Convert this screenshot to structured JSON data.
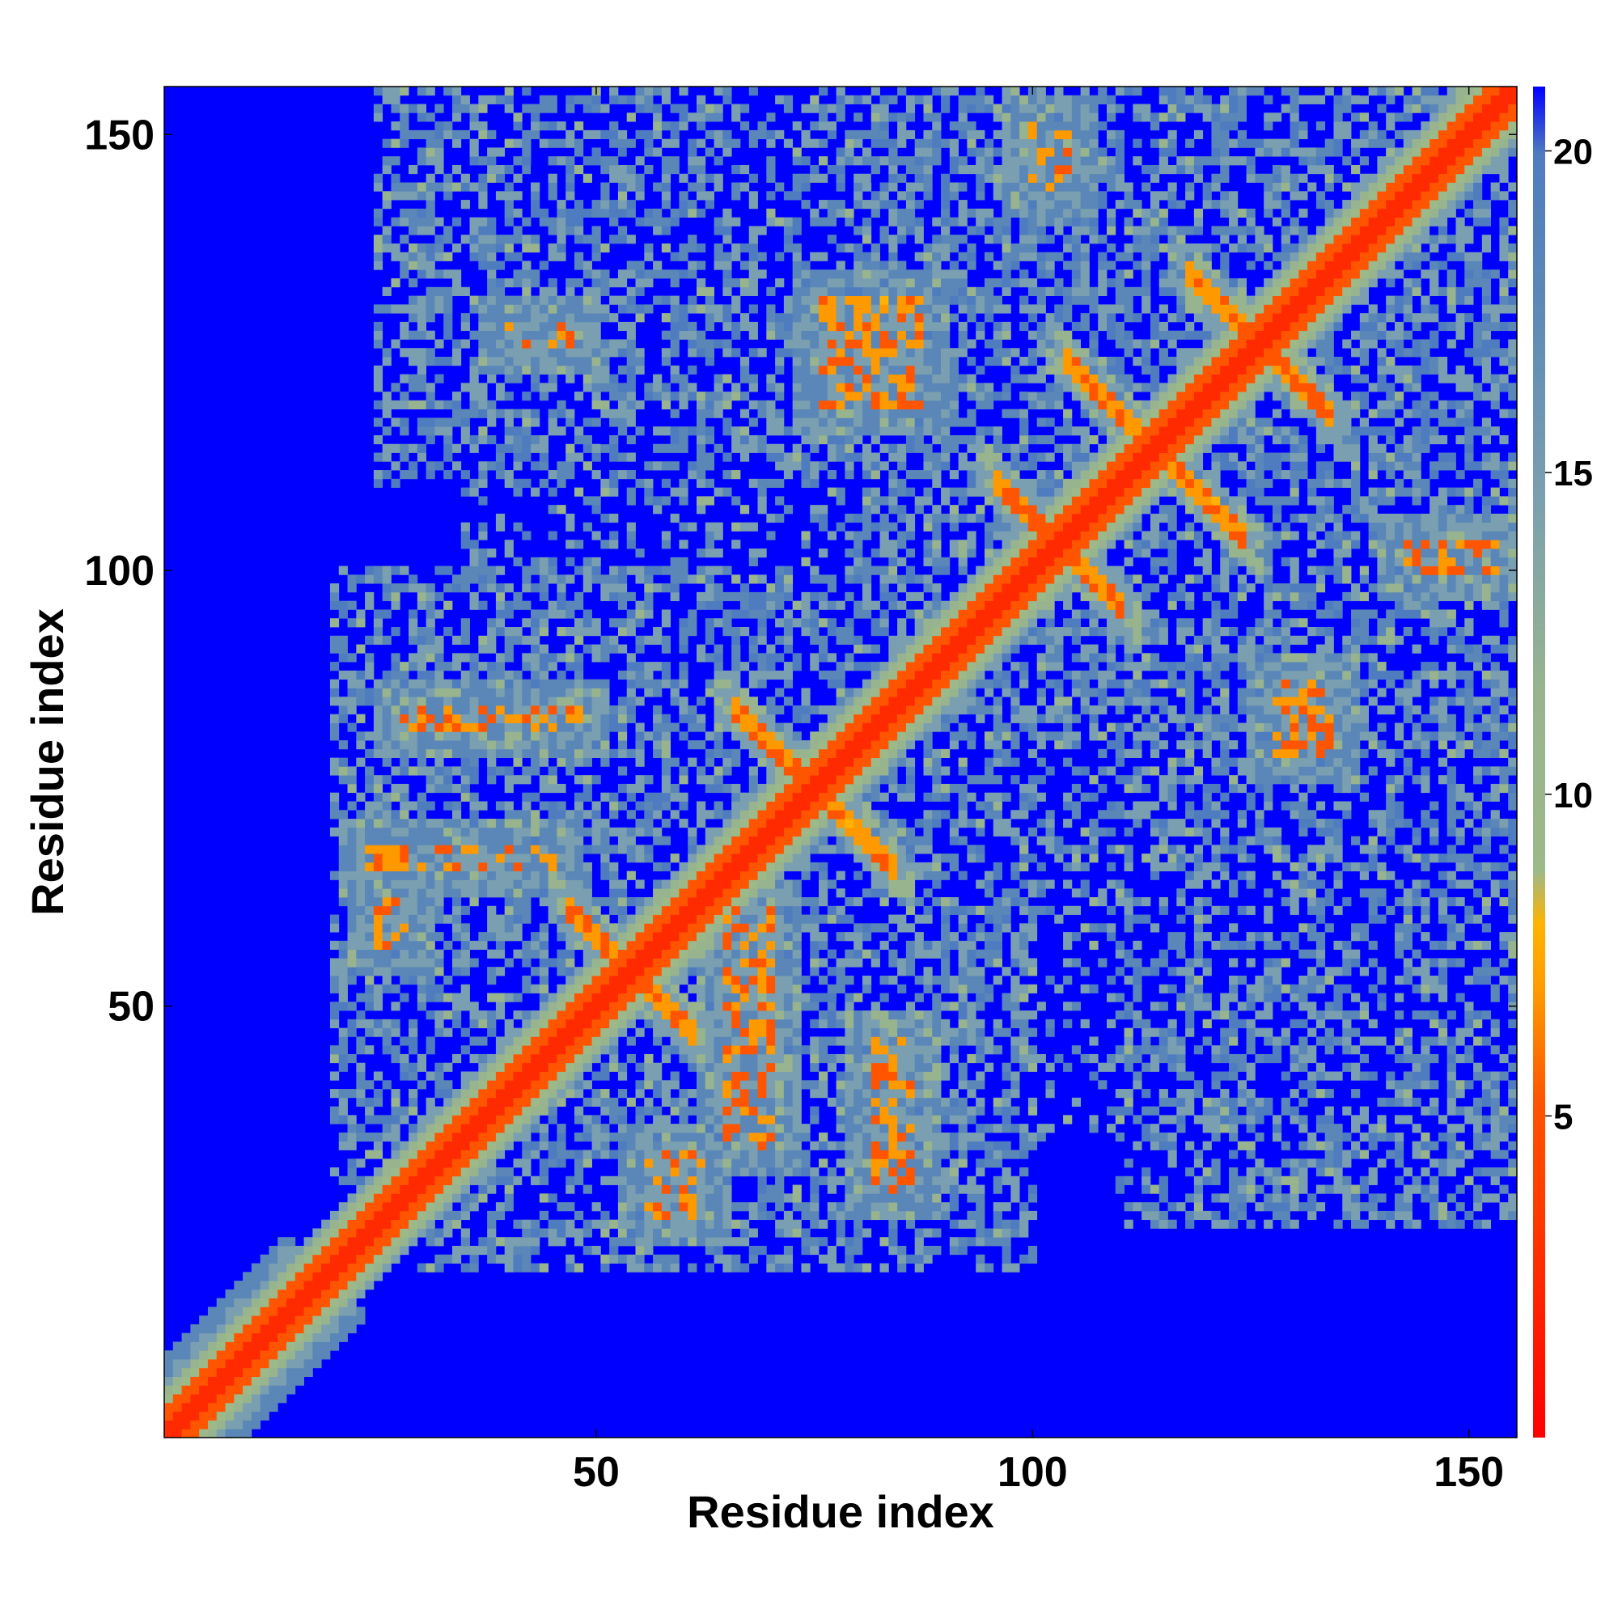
{
  "chart_data": {
    "type": "heatmap",
    "title": "",
    "xlabel": "Residue index",
    "ylabel": "Residue index",
    "xlim": [
      1,
      155
    ],
    "ylim": [
      1,
      155
    ],
    "n_residues": 155,
    "x_ticks": [
      {
        "value": 50,
        "label": "50"
      },
      {
        "value": 100,
        "label": "100"
      },
      {
        "value": 150,
        "label": "150"
      }
    ],
    "y_ticks": [
      {
        "value": 50,
        "label": "50"
      },
      {
        "value": 100,
        "label": "100"
      },
      {
        "value": 150,
        "label": "150"
      }
    ],
    "colorbar": {
      "range": [
        0,
        21
      ],
      "ticks": [
        {
          "value": 5,
          "label": "5"
        },
        {
          "value": 10,
          "label": "10"
        },
        {
          "value": 15,
          "label": "15"
        },
        {
          "value": 20,
          "label": "20"
        }
      ],
      "colors": [
        {
          "stop": 0.0,
          "color": "#ff0000"
        },
        {
          "stop": 0.12,
          "color": "#ff2a00"
        },
        {
          "stop": 0.25,
          "color": "#ff5500"
        },
        {
          "stop": 0.33,
          "color": "#ff9900"
        },
        {
          "stop": 0.38,
          "color": "#ffb300"
        },
        {
          "stop": 0.42,
          "color": "#9cb98a"
        },
        {
          "stop": 0.55,
          "color": "#98b48e"
        },
        {
          "stop": 0.7,
          "color": "#7a9fb0"
        },
        {
          "stop": 0.85,
          "color": "#5a87b8"
        },
        {
          "stop": 0.95,
          "color": "#4f7cbf"
        },
        {
          "stop": 1.0,
          "color": "#0000ff"
        }
      ]
    },
    "background_color": "#0000ff",
    "contact_features": [
      {
        "kind": "diagonal",
        "start": 1,
        "end": 155,
        "width": 3.5
      },
      {
        "kind": "blob",
        "x": 10,
        "y": 10,
        "rx": 10,
        "ry": 10,
        "strength": 0.9
      },
      {
        "kind": "antidiagonal",
        "cx": 75,
        "cy": 75,
        "half_length": 9,
        "strength": 1.0
      },
      {
        "kind": "antidiagonal",
        "cx": 54,
        "cy": 54,
        "half_length": 7,
        "strength": 1.0
      },
      {
        "kind": "antidiagonal",
        "cx": 103,
        "cy": 103,
        "half_length": 7,
        "strength": 1.0
      },
      {
        "kind": "antidiagonal",
        "cx": 114,
        "cy": 114,
        "half_length": 10,
        "strength": 1.0
      },
      {
        "kind": "antidiagonal",
        "cx": 126,
        "cy": 126,
        "half_length": 8,
        "strength": 1.0
      },
      {
        "kind": "band",
        "x1": 28,
        "x2": 48,
        "y1": 83,
        "y2": 83,
        "strength": 0.9
      },
      {
        "kind": "band",
        "x1": 24,
        "x2": 45,
        "y1": 67,
        "y2": 67,
        "strength": 0.85
      },
      {
        "kind": "band",
        "x1": 25,
        "x2": 28,
        "y1": 58,
        "y2": 61,
        "strength": 0.9
      },
      {
        "kind": "band",
        "x1": 65,
        "x2": 70,
        "y1": 35,
        "y2": 60,
        "strength": 0.8
      },
      {
        "kind": "band",
        "x1": 82,
        "x2": 86,
        "y1": 30,
        "y2": 45,
        "strength": 0.85
      },
      {
        "kind": "band",
        "x1": 56,
        "x2": 62,
        "y1": 27,
        "y2": 32,
        "strength": 0.8
      },
      {
        "kind": "band",
        "x1": 76,
        "x2": 87,
        "y1": 130,
        "y2": 120,
        "strength": 0.9
      },
      {
        "kind": "band",
        "x1": 100,
        "x2": 104,
        "y1": 150,
        "y2": 145,
        "strength": 0.8
      },
      {
        "kind": "band",
        "x1": 128,
        "x2": 134,
        "y1": 86,
        "y2": 80,
        "strength": 0.9
      },
      {
        "kind": "band",
        "x1": 143,
        "x2": 153,
        "y1": 101,
        "y2": 102,
        "strength": 0.8
      },
      {
        "kind": "band",
        "x1": 40,
        "x2": 47,
        "y1": 127,
        "y2": 127,
        "strength": 0.75
      },
      {
        "kind": "region",
        "x1": 30,
        "x2": 100,
        "y1": 20,
        "y2": 90,
        "density": 0.55
      },
      {
        "kind": "region",
        "x1": 85,
        "x2": 155,
        "y1": 80,
        "y2": 155,
        "density": 0.6
      },
      {
        "kind": "region",
        "x1": 25,
        "x2": 95,
        "y1": 110,
        "y2": 155,
        "density": 0.5
      },
      {
        "kind": "region",
        "x1": 110,
        "x2": 155,
        "y1": 28,
        "y2": 80,
        "density": 0.5
      },
      {
        "kind": "region",
        "x1": 95,
        "x2": 115,
        "y1": 35,
        "y2": 80,
        "density": 0.3
      }
    ]
  }
}
